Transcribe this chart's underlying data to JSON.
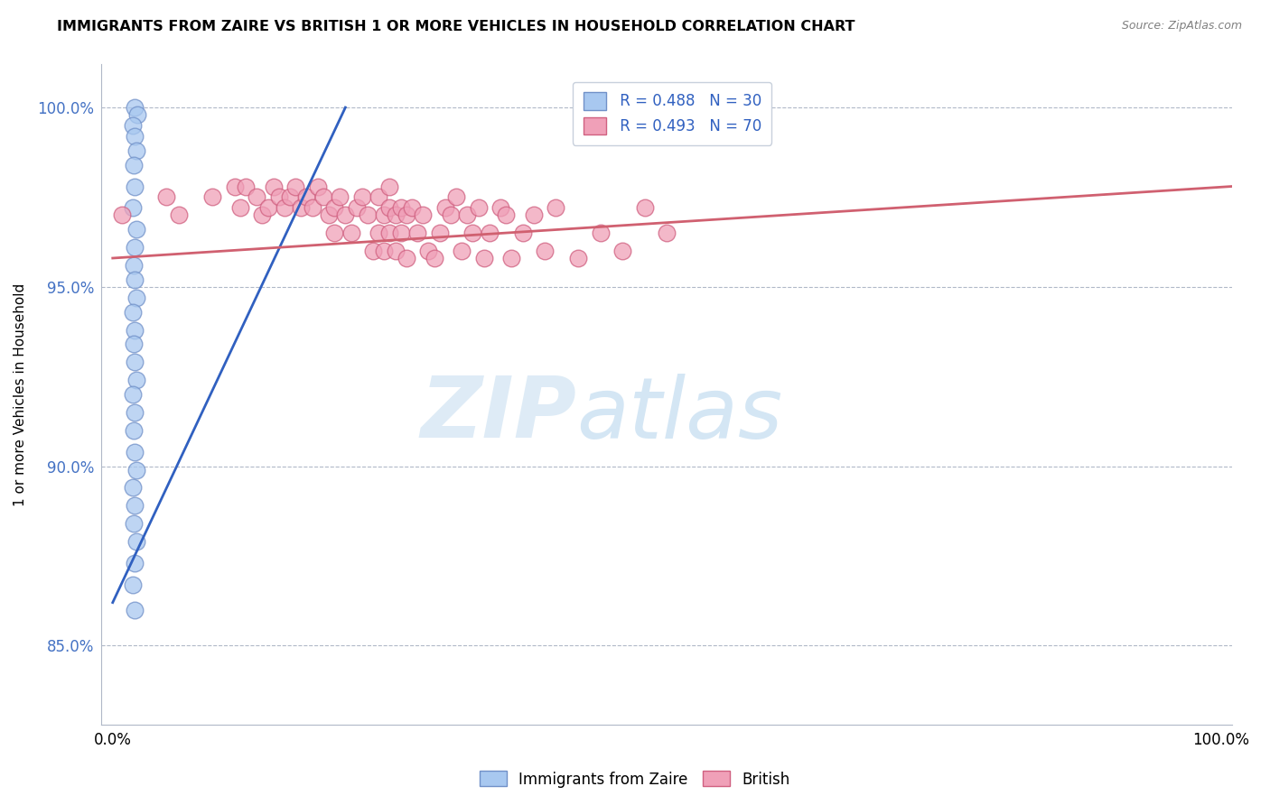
{
  "title": "IMMIGRANTS FROM ZAIRE VS BRITISH 1 OR MORE VEHICLES IN HOUSEHOLD CORRELATION CHART",
  "source_text": "Source: ZipAtlas.com",
  "ylabel": "1 or more Vehicles in Household",
  "blue_R": 0.488,
  "blue_N": 30,
  "pink_R": 0.493,
  "pink_N": 70,
  "legend_label_blue": "Immigrants from Zaire",
  "legend_label_pink": "British",
  "blue_color": "#a8c8f0",
  "pink_color": "#f0a0b8",
  "blue_edge_color": "#7090c8",
  "pink_edge_color": "#d06080",
  "blue_line_color": "#3060c0",
  "pink_line_color": "#d06070",
  "watermark_zip": "ZIP",
  "watermark_atlas": "atlas",
  "xlim": [
    -0.01,
    1.01
  ],
  "ylim": [
    0.828,
    1.012
  ],
  "yticks": [
    0.85,
    0.9,
    0.95,
    1.0
  ],
  "ytick_labels": [
    "85.0%",
    "90.0%",
    "95.0%",
    "100.0%"
  ],
  "xticks": [
    0.0,
    1.0
  ],
  "xtick_labels": [
    "0.0%",
    "100.0%"
  ],
  "blue_x": [
    0.02,
    0.022,
    0.018,
    0.02,
    0.021,
    0.019,
    0.02,
    0.018,
    0.021,
    0.02,
    0.019,
    0.02,
    0.021,
    0.018,
    0.02,
    0.019,
    0.02,
    0.021,
    0.018,
    0.02,
    0.019,
    0.02,
    0.021,
    0.018,
    0.02,
    0.019,
    0.021,
    0.02,
    0.018,
    0.02
  ],
  "blue_y": [
    1.0,
    0.998,
    0.995,
    0.992,
    0.988,
    0.984,
    0.978,
    0.972,
    0.966,
    0.961,
    0.956,
    0.952,
    0.947,
    0.943,
    0.938,
    0.934,
    0.929,
    0.924,
    0.92,
    0.915,
    0.91,
    0.904,
    0.899,
    0.894,
    0.889,
    0.884,
    0.879,
    0.873,
    0.867,
    0.86
  ],
  "pink_x": [
    0.008,
    0.048,
    0.06,
    0.09,
    0.11,
    0.115,
    0.12,
    0.13,
    0.135,
    0.14,
    0.145,
    0.15,
    0.155,
    0.16,
    0.165,
    0.17,
    0.175,
    0.18,
    0.185,
    0.19,
    0.195,
    0.2,
    0.2,
    0.205,
    0.21,
    0.215,
    0.22,
    0.225,
    0.23,
    0.235,
    0.24,
    0.24,
    0.245,
    0.245,
    0.25,
    0.25,
    0.25,
    0.255,
    0.255,
    0.26,
    0.26,
    0.265,
    0.265,
    0.27,
    0.275,
    0.28,
    0.285,
    0.29,
    0.295,
    0.3,
    0.305,
    0.31,
    0.315,
    0.32,
    0.325,
    0.33,
    0.335,
    0.34,
    0.35,
    0.355,
    0.36,
    0.37,
    0.38,
    0.39,
    0.4,
    0.42,
    0.44,
    0.46,
    0.48,
    0.5
  ],
  "pink_y": [
    0.97,
    0.975,
    0.97,
    0.975,
    0.978,
    0.972,
    0.978,
    0.975,
    0.97,
    0.972,
    0.978,
    0.975,
    0.972,
    0.975,
    0.978,
    0.972,
    0.975,
    0.972,
    0.978,
    0.975,
    0.97,
    0.972,
    0.965,
    0.975,
    0.97,
    0.965,
    0.972,
    0.975,
    0.97,
    0.96,
    0.965,
    0.975,
    0.97,
    0.96,
    0.972,
    0.965,
    0.978,
    0.97,
    0.96,
    0.972,
    0.965,
    0.97,
    0.958,
    0.972,
    0.965,
    0.97,
    0.96,
    0.958,
    0.965,
    0.972,
    0.97,
    0.975,
    0.96,
    0.97,
    0.965,
    0.972,
    0.958,
    0.965,
    0.972,
    0.97,
    0.958,
    0.965,
    0.97,
    0.96,
    0.972,
    0.958,
    0.965,
    0.96,
    0.972,
    0.965
  ],
  "blue_line_x0": 0.0,
  "blue_line_x1": 0.21,
  "blue_line_y0": 0.862,
  "blue_line_y1": 1.0,
  "pink_line_x0": 0.0,
  "pink_line_x1": 1.01,
  "pink_line_y0": 0.958,
  "pink_line_y1": 0.978
}
